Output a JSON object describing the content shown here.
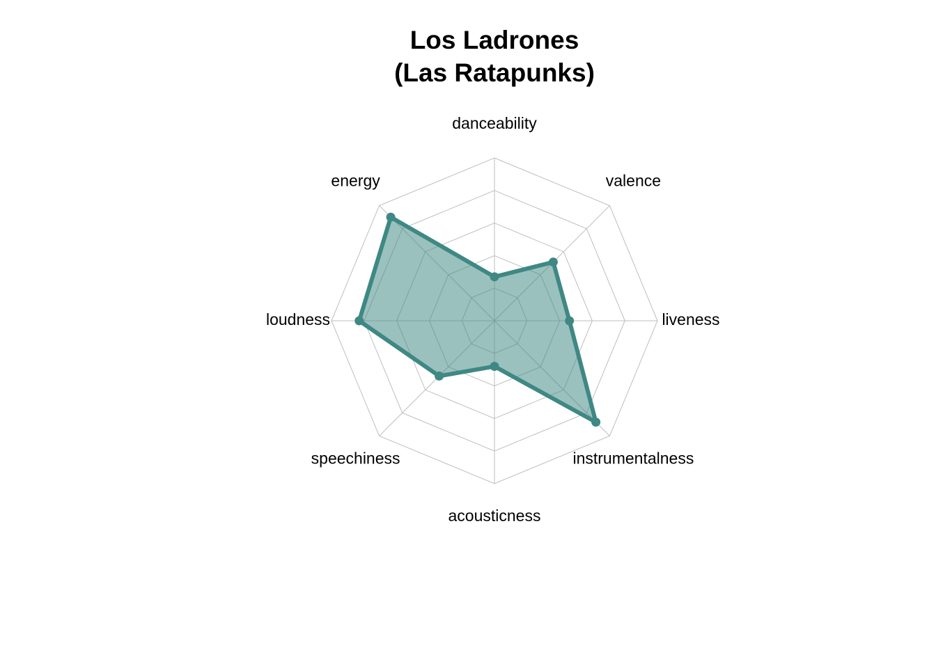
{
  "chart_data": {
    "type": "radar",
    "title_lines": [
      "Los Ladrones",
      "(Las Ratapunks)"
    ],
    "axes": [
      "danceability",
      "valence",
      "liveness",
      "instrumentalness",
      "acousticness",
      "speechiness",
      "loudness",
      "energy"
    ],
    "series": [
      {
        "values": [
          0.27,
          0.51,
          0.46,
          0.88,
          0.28,
          0.48,
          0.83,
          0.9
        ]
      }
    ],
    "range": [
      0,
      1
    ],
    "grid_levels": 5,
    "grid": true,
    "legend": "none",
    "colors": {
      "line": "#3f8884",
      "fill": "#3f8884",
      "grid": "#bebebe"
    }
  }
}
